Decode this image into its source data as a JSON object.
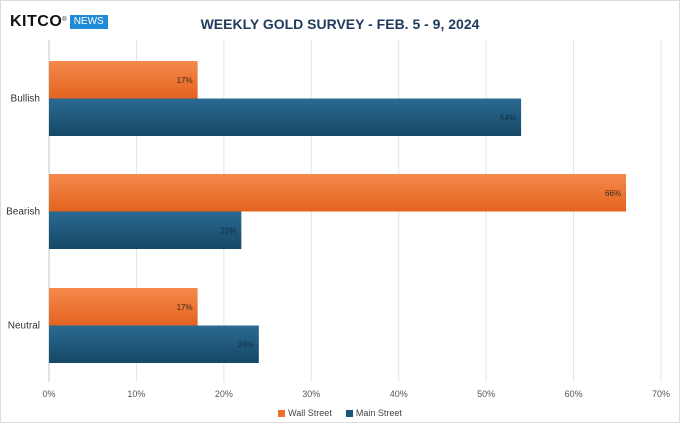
{
  "logo": {
    "word": "KITCO",
    "reg": "®",
    "badge": "NEWS"
  },
  "chart_data": {
    "type": "bar",
    "orientation": "horizontal",
    "title": "WEEKLY GOLD SURVEY - FEB. 5 - 9, 2024",
    "categories": [
      "Bullish",
      "Bearish",
      "Neutral"
    ],
    "series": [
      {
        "name": "Wall Street",
        "values": [
          17,
          66,
          17
        ],
        "labels": [
          "17%",
          "66%",
          "17%"
        ],
        "color": "#ed6f2b"
      },
      {
        "name": "Main Street",
        "values": [
          54,
          22,
          24
        ],
        "labels": [
          "54%",
          "22%",
          "24%"
        ],
        "color": "#1c5478"
      }
    ],
    "xlim": [
      0,
      70
    ],
    "ticks": [
      "0%",
      "10%",
      "20%",
      "30%",
      "40%",
      "50%",
      "60%",
      "70%"
    ],
    "grid": true,
    "legend_position": "bottom"
  }
}
